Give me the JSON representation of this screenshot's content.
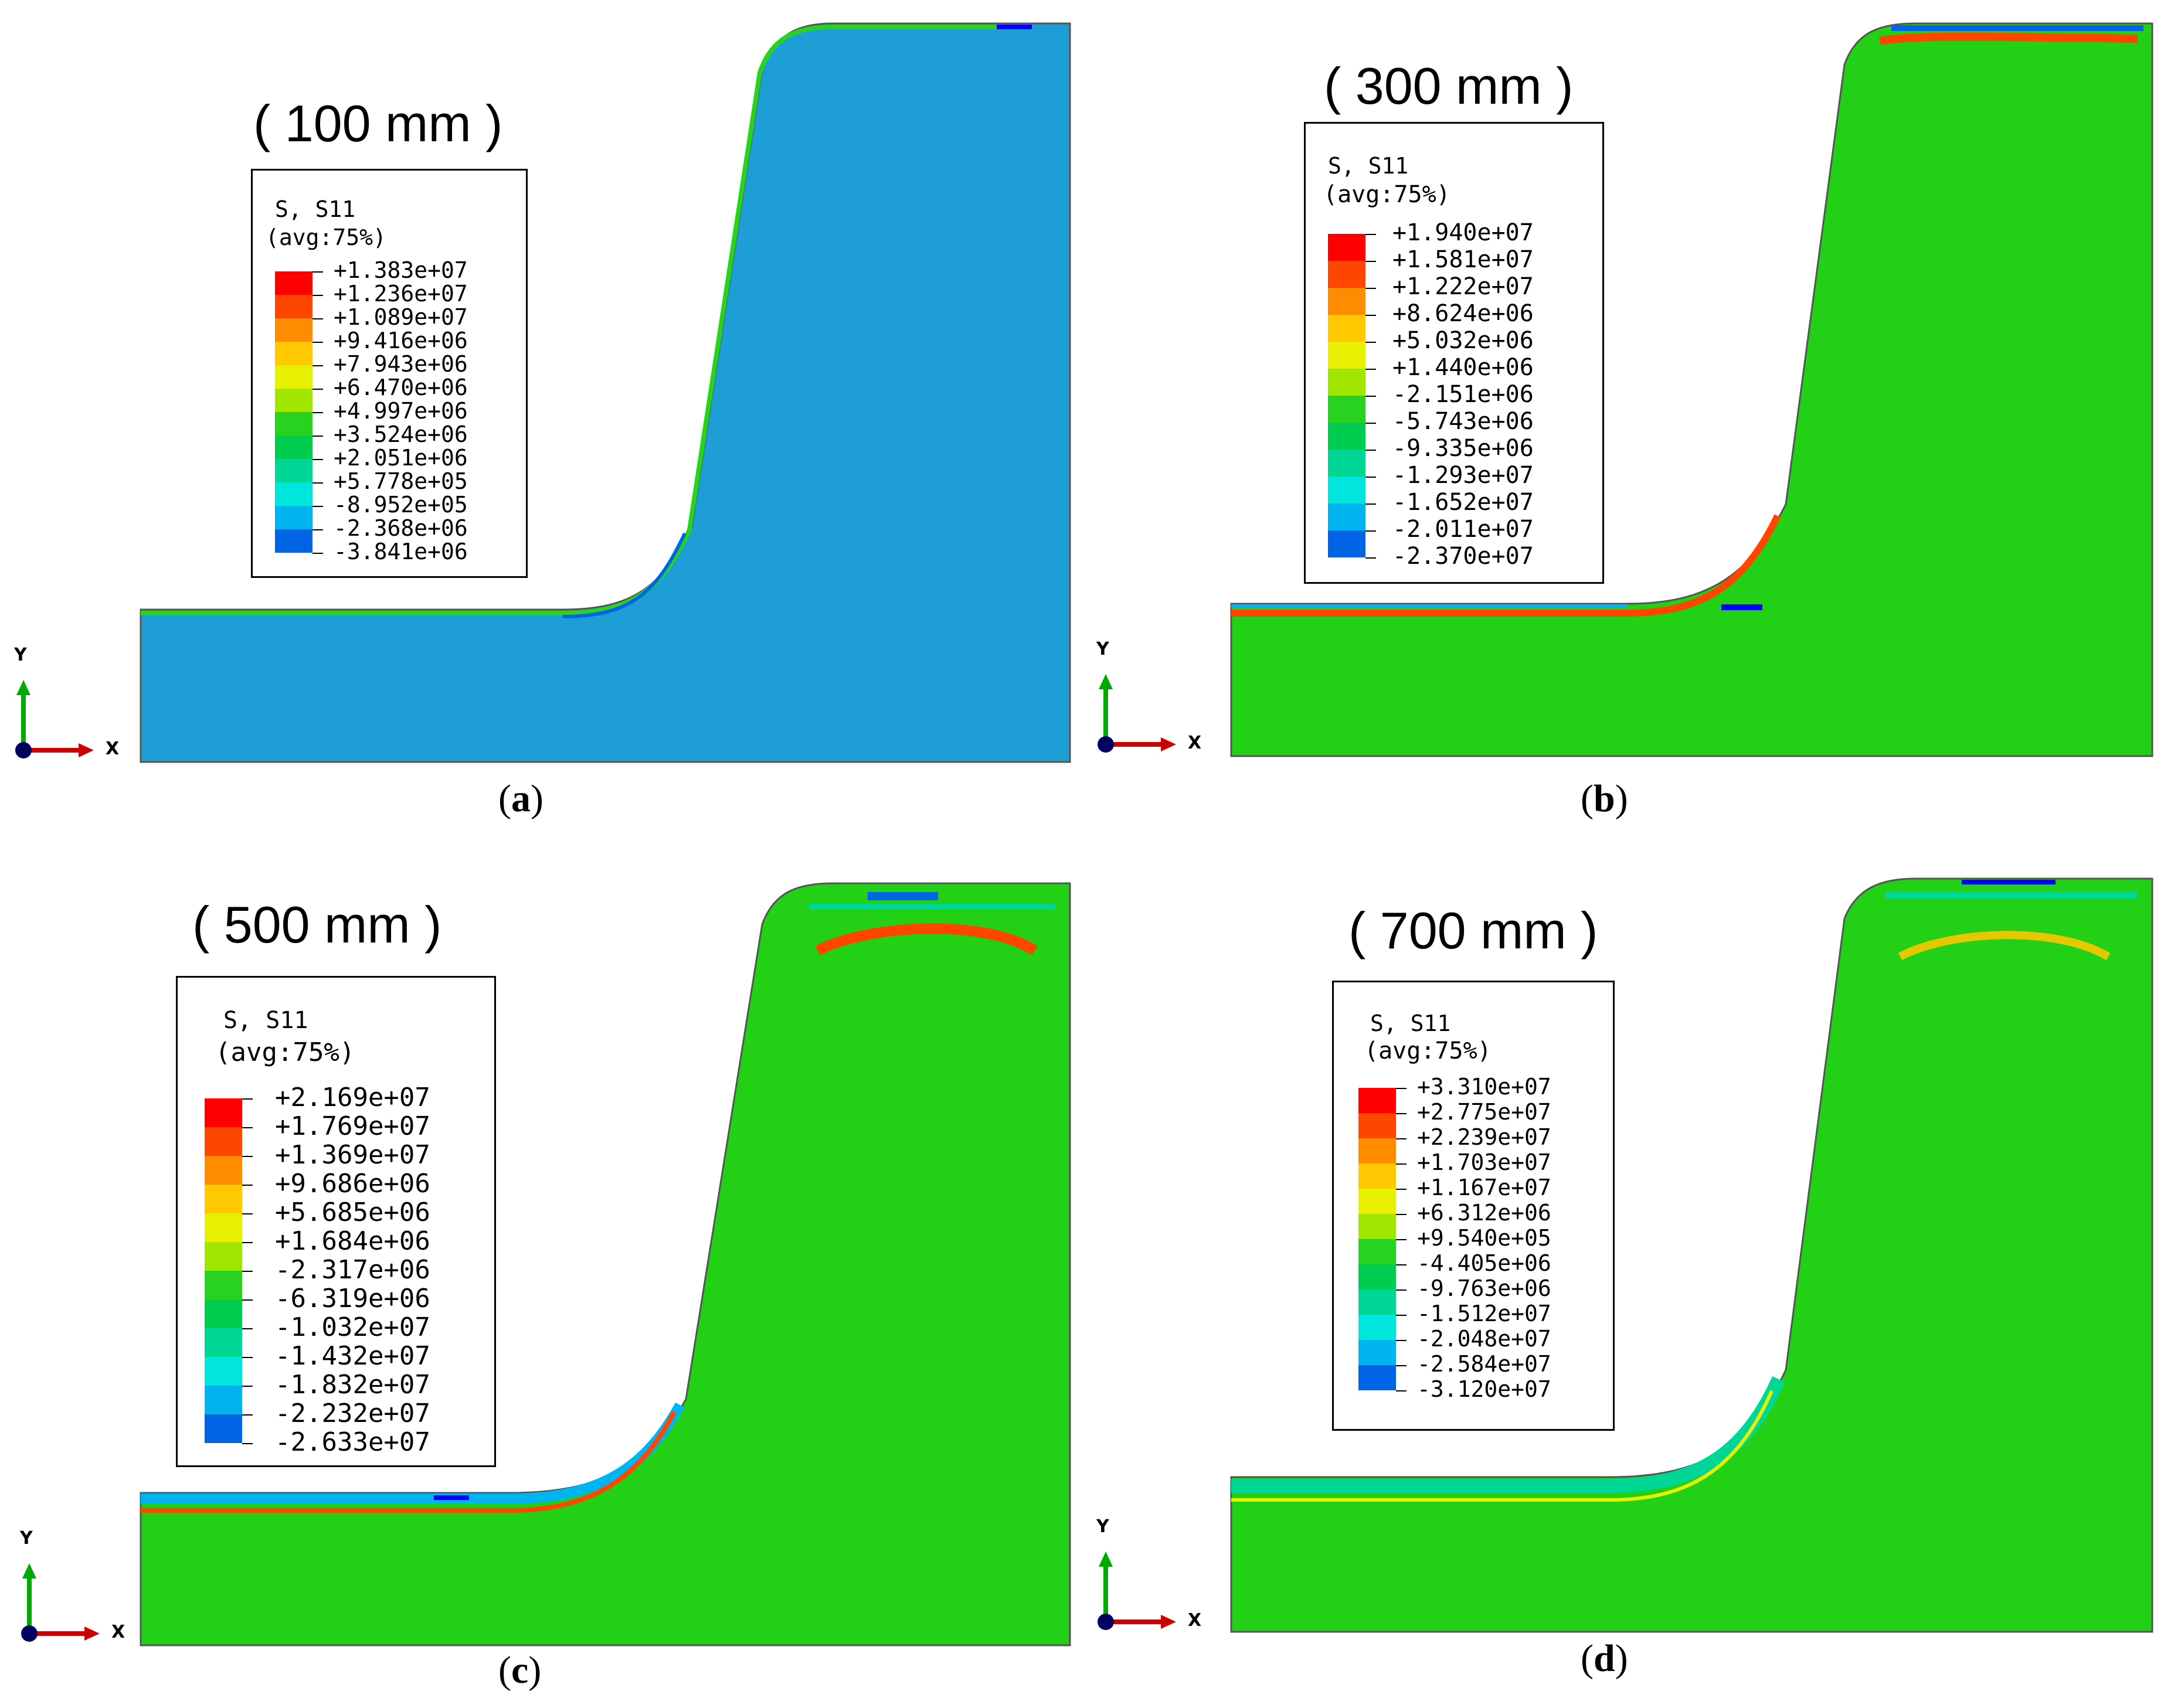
{
  "figure": {
    "panels": [
      {
        "id": "a",
        "title": "( 100 mm )",
        "caption": "a",
        "legend_header": [
          "S, S11",
          "(avg:75%)"
        ],
        "legend_values": [
          "+1.383e+07",
          "+1.236e+07",
          "+1.089e+07",
          "+9.416e+06",
          "+7.943e+06",
          "+6.470e+06",
          "+4.997e+06",
          "+3.524e+06",
          "+2.051e+06",
          "+5.778e+05",
          "-8.952e+05",
          "-2.368e+06",
          "-3.841e+06"
        ],
        "body_color": "#1d9fd6"
      },
      {
        "id": "b",
        "title": "( 300 mm )",
        "caption": "b",
        "legend_header": [
          "S, S11",
          "(avg:75%)"
        ],
        "legend_values": [
          "+1.940e+07",
          "+1.581e+07",
          "+1.222e+07",
          "+8.624e+06",
          "+5.032e+06",
          "+1.440e+06",
          "-2.151e+06",
          "-5.743e+06",
          "-9.335e+06",
          "-1.293e+07",
          "-1.652e+07",
          "-2.011e+07",
          "-2.370e+07"
        ],
        "body_color": "#22d016"
      },
      {
        "id": "c",
        "title": "( 500 mm )",
        "caption": "c",
        "legend_header": [
          "S, S11",
          "(avg:75%)"
        ],
        "legend_values": [
          "+2.169e+07",
          "+1.769e+07",
          "+1.369e+07",
          "+9.686e+06",
          "+5.685e+06",
          "+1.684e+06",
          "-2.317e+06",
          "-6.319e+06",
          "-1.032e+07",
          "-1.432e+07",
          "-1.832e+07",
          "-2.232e+07",
          "-2.633e+07"
        ],
        "body_color": "#22d016"
      },
      {
        "id": "d",
        "title": "( 700 mm )",
        "caption": "d",
        "legend_header": [
          "S, S11",
          "(avg:75%)"
        ],
        "legend_values": [
          "+3.310e+07",
          "+2.775e+07",
          "+2.239e+07",
          "+1.703e+07",
          "+1.167e+07",
          "+6.312e+06",
          "+9.540e+05",
          "-4.405e+06",
          "-9.763e+06",
          "-1.512e+07",
          "-2.048e+07",
          "-2.584e+07",
          "-3.120e+07"
        ],
        "body_color": "#22d016"
      }
    ],
    "colormap": [
      "#ff0000",
      "#ff4600",
      "#ff8c00",
      "#ffc800",
      "#e6f000",
      "#a0e600",
      "#28d21e",
      "#00cd50",
      "#00d796",
      "#00e6dc",
      "#00b4f0",
      "#0064e6",
      "#0000ff"
    ],
    "axis_labels": {
      "y": "Y",
      "x": "X"
    },
    "axis_colors": {
      "y": "#00aa00",
      "x": "#cc0000",
      "origin": "#000060"
    }
  }
}
